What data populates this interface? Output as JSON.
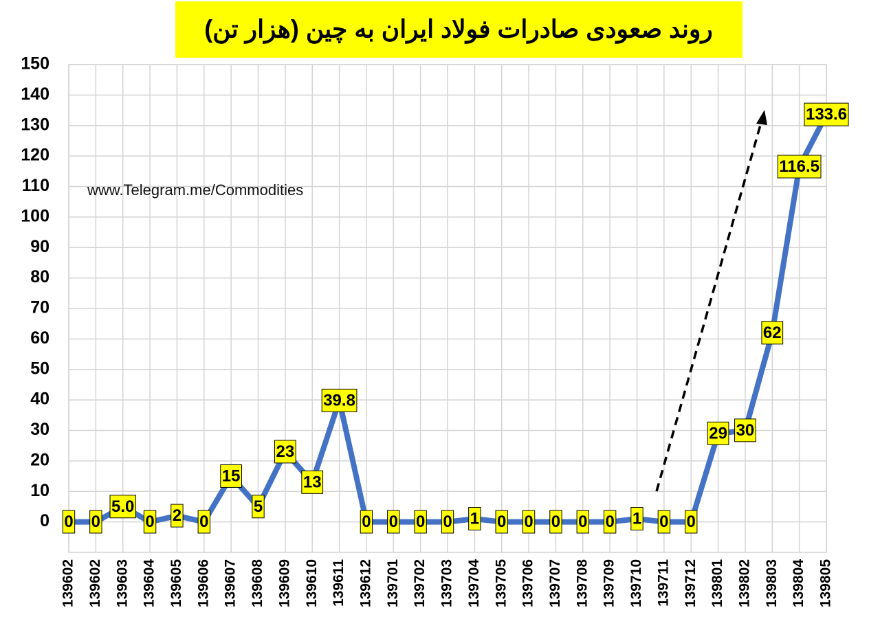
{
  "chart_data": {
    "type": "line",
    "title": "روند صعودی صادرات فولاد ایران به چین (هزار تن)",
    "annotation": "www.Telegram.me/Commodities",
    "categories": [
      "139602",
      "139602",
      "139603",
      "139604",
      "139605",
      "139606",
      "139607",
      "139608",
      "139609",
      "139610",
      "139611",
      "139612",
      "139701",
      "139702",
      "139703",
      "139704",
      "139705",
      "139706",
      "139707",
      "139708",
      "139709",
      "139710",
      "139711",
      "139712",
      "139801",
      "139802",
      "139803",
      "139804",
      "139805"
    ],
    "values": [
      0,
      0,
      5.0,
      0,
      2,
      0,
      15,
      5,
      23,
      13,
      39.8,
      0,
      0,
      0,
      0,
      1,
      0,
      0,
      0,
      0,
      0,
      1,
      0,
      0,
      29,
      30,
      62,
      116.5,
      133.6
    ],
    "value_labels": [
      "0",
      "0",
      "5.0",
      "0",
      "2",
      "0",
      "15",
      "5",
      "23",
      "13",
      "39.8",
      "0",
      "0",
      "0",
      "0",
      "1",
      "0",
      "0",
      "0",
      "0",
      "0",
      "1",
      "0",
      "0",
      "29",
      "30",
      "62",
      "116.5",
      "133.6"
    ],
    "color": "#4472c4",
    "ylim": [
      -10,
      150
    ],
    "yticks": [
      0,
      10,
      20,
      30,
      40,
      50,
      60,
      70,
      80,
      90,
      100,
      110,
      120,
      130,
      140,
      150
    ],
    "grid": true
  }
}
